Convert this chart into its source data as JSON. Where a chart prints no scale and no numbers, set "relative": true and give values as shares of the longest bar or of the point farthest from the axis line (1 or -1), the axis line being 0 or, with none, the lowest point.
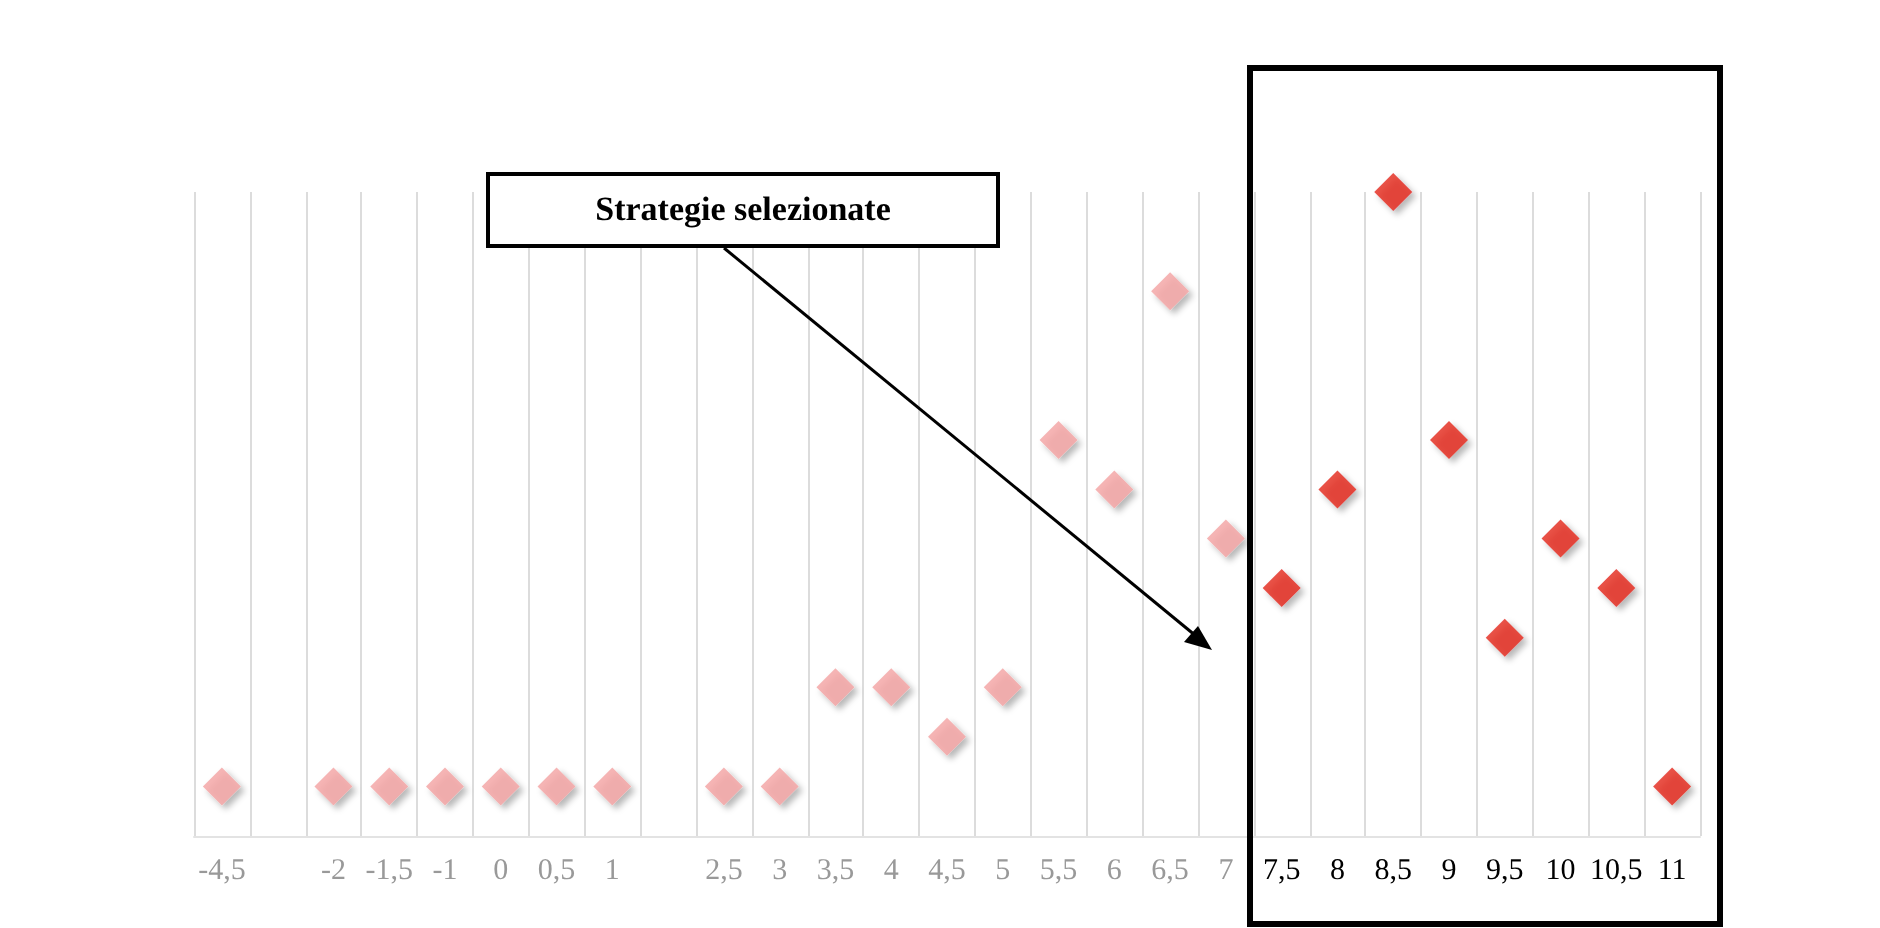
{
  "chart_data": {
    "type": "scatter",
    "categories": [
      "-4,5",
      null,
      "-2",
      "-1,5",
      "-1",
      "0",
      "0,5",
      "1",
      null,
      "2,5",
      "3",
      "3,5",
      "4",
      "4,5",
      "5",
      "5,5",
      "6",
      "6,5",
      "7",
      "7,5",
      "8",
      "8,5",
      "9",
      "9,5",
      "10",
      "10,5",
      "11"
    ],
    "relative": true,
    "marker": "diamond",
    "grid": "x",
    "series": [
      {
        "color": "#f4a3a3",
        "values": [
          0.077,
          null,
          0.077,
          0.077,
          0.077,
          0.077,
          0.077,
          0.077,
          null,
          0.077,
          0.077,
          0.231,
          0.231,
          0.154,
          0.231,
          0.615,
          0.538,
          0.846,
          0.462,
          null,
          null,
          null,
          null,
          null,
          null,
          null,
          null
        ]
      },
      {
        "color": "#e3241b",
        "values": [
          null,
          null,
          null,
          null,
          null,
          null,
          null,
          null,
          null,
          null,
          null,
          null,
          null,
          null,
          null,
          null,
          null,
          null,
          null,
          0.385,
          0.538,
          1,
          0.615,
          0.308,
          0.462,
          0.385,
          0.077
        ]
      }
    ],
    "annotations": [
      "Strategie selezionate"
    ]
  }
}
